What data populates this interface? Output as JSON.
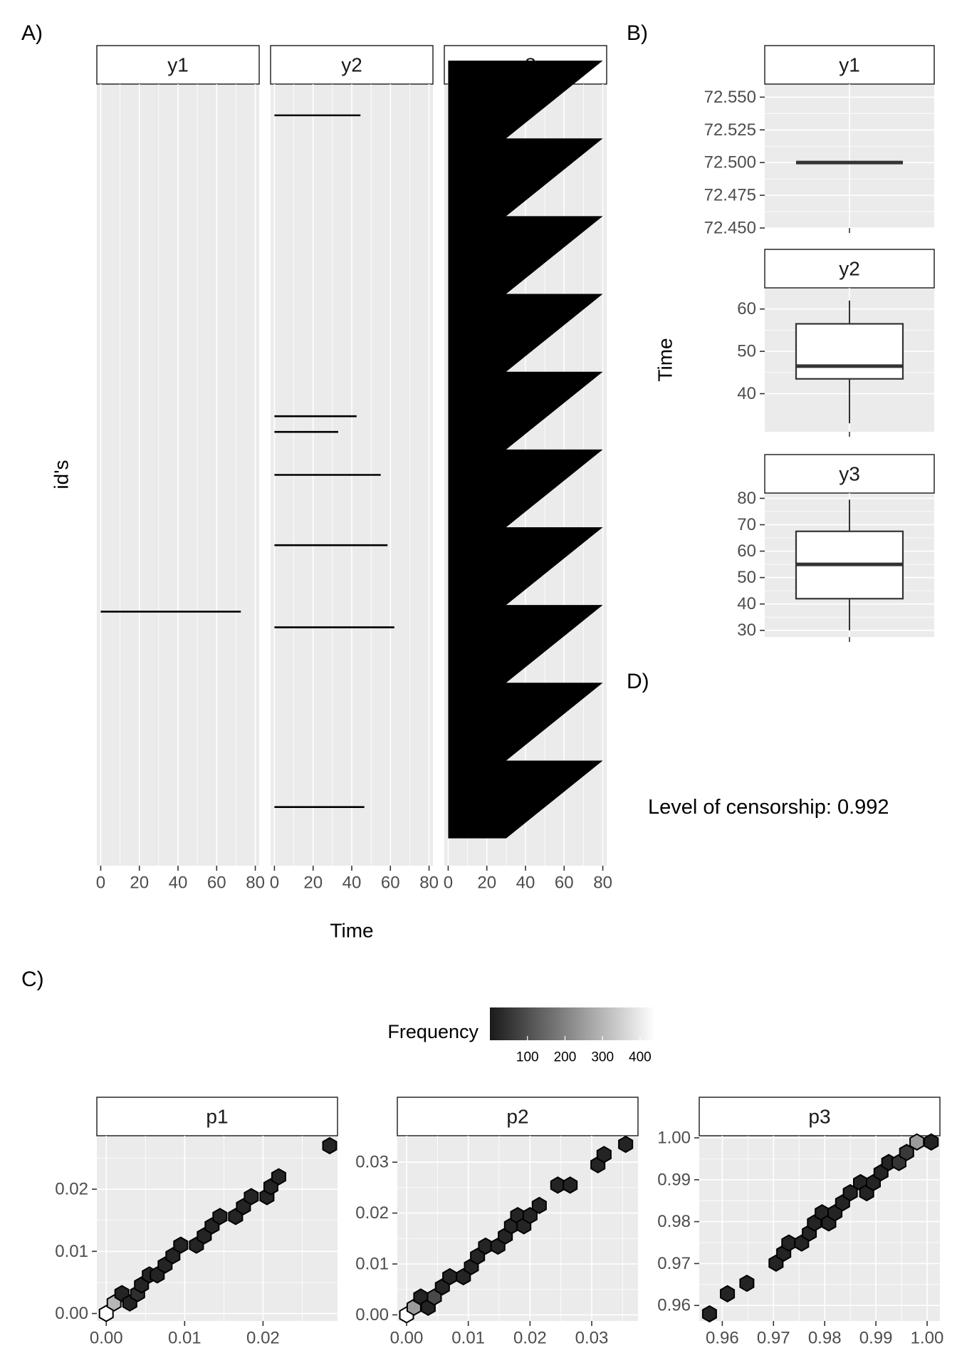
{
  "tags": {
    "a": "A)",
    "b": "B)",
    "c": "C)",
    "d": "D)"
  },
  "censorship_note": "Level of censorship: 0.992",
  "colors": {
    "panel": "#ebebeb",
    "hex_low": "#1a1a1a",
    "hex_high": "#ffffff"
  },
  "chart_data": [
    {
      "type": "line",
      "facets": [
        "y1",
        "y2",
        "y3"
      ],
      "xlabel": "Time",
      "ylabel": "id's",
      "xlim": [
        -2,
        82
      ],
      "xticks": [
        0,
        20,
        40,
        60,
        80
      ],
      "xtick_labels": [
        "0",
        "20",
        "40",
        "60",
        "80"
      ],
      "ylim": [
        0,
        1
      ],
      "grid": true,
      "segments": {
        "y1": [
          {
            "id": 0.325,
            "start": 0,
            "end": 72.5
          }
        ],
        "y2": [
          {
            "id": 0.96,
            "start": 0,
            "end": 44.5
          },
          {
            "id": 0.575,
            "start": 0,
            "end": 42.5
          },
          {
            "id": 0.555,
            "start": 0,
            "end": 33.0
          },
          {
            "id": 0.5,
            "start": 0,
            "end": 55.0
          },
          {
            "id": 0.41,
            "start": 0,
            "end": 58.5
          },
          {
            "id": 0.305,
            "start": 0,
            "end": 62.0
          },
          {
            "id": 0.075,
            "start": 0,
            "end": 46.5
          }
        ],
        "y3": {
          "id_top": 1.03,
          "id_bottom": 0.035,
          "start": 0,
          "end_min": 30,
          "end_max": 80,
          "cycles": 10
        }
      }
    },
    {
      "type": "box",
      "facets": [
        "y1",
        "y2",
        "y3"
      ],
      "ylabel": "Time",
      "boxes": [
        {
          "name": "y1",
          "ylim": [
            72.45,
            72.56
          ],
          "yticks": [
            72.45,
            72.475,
            72.5,
            72.525,
            72.55
          ],
          "ytick_labels": [
            "72.450",
            "72.475",
            "72.500",
            "72.525",
            "72.550"
          ],
          "min": 72.5,
          "q1": 72.5,
          "median": 72.5,
          "q3": 72.5,
          "max": 72.5
        },
        {
          "name": "y2",
          "ylim": [
            31,
            65
          ],
          "yticks": [
            40,
            50,
            60
          ],
          "ytick_labels": [
            "40",
            "50",
            "60"
          ],
          "min": 33,
          "q1": 43.5,
          "median": 46.5,
          "q3": 56.5,
          "max": 62
        },
        {
          "name": "y3",
          "ylim": [
            27.5,
            82
          ],
          "yticks": [
            30,
            40,
            50,
            60,
            70,
            80
          ],
          "ytick_labels": [
            "30",
            "40",
            "50",
            "60",
            "70",
            "80"
          ],
          "min": 30,
          "q1": 42,
          "median": 55,
          "q3": 67.5,
          "max": 79.5
        }
      ]
    },
    {
      "type": "hexbin",
      "legend": {
        "title": "Frequency",
        "ticks": [
          100,
          200,
          300,
          400
        ],
        "tick_labels": [
          "100",
          "200",
          "300",
          "400"
        ],
        "range": [
          0,
          440
        ]
      },
      "panels": [
        {
          "name": "p1",
          "xlim": [
            -0.0012,
            0.0295
          ],
          "ylim": [
            -0.0012,
            0.0286
          ],
          "xticks": [
            0,
            0.01,
            0.02
          ],
          "xtick_labels": [
            "0.00",
            "0.01",
            "0.02"
          ],
          "yticks": [
            0,
            0.01,
            0.02
          ],
          "ytick_labels": [
            "0.00",
            "0.01",
            "0.02"
          ],
          "hexes": [
            [
              0,
              0,
              440
            ],
            [
              0.001,
              0.0017,
              300
            ],
            [
              0.002,
              0.0032,
              20
            ],
            [
              0.003,
              0.0017,
              20
            ],
            [
              0.004,
              0.0032,
              40
            ],
            [
              0.0045,
              0.0046,
              20
            ],
            [
              0.0055,
              0.0062,
              20
            ],
            [
              0.0065,
              0.0062,
              20
            ],
            [
              0.0075,
              0.0078,
              20
            ],
            [
              0.0085,
              0.0093,
              20
            ],
            [
              0.0095,
              0.011,
              20
            ],
            [
              0.0115,
              0.011,
              20
            ],
            [
              0.0125,
              0.0125,
              20
            ],
            [
              0.0135,
              0.0141,
              20
            ],
            [
              0.0145,
              0.0156,
              20
            ],
            [
              0.0165,
              0.0156,
              20
            ],
            [
              0.0175,
              0.0172,
              20
            ],
            [
              0.0185,
              0.0188,
              20
            ],
            [
              0.0205,
              0.0188,
              20
            ],
            [
              0.021,
              0.0204,
              20
            ],
            [
              0.022,
              0.022,
              20
            ],
            [
              0.0285,
              0.027,
              20
            ]
          ]
        },
        {
          "name": "p2",
          "xlim": [
            -0.0015,
            0.0375
          ],
          "ylim": [
            -0.0012,
            0.0352
          ],
          "xticks": [
            0,
            0.01,
            0.02,
            0.03
          ],
          "xtick_labels": [
            "0.00",
            "0.01",
            "0.02",
            "0.03"
          ],
          "yticks": [
            0,
            0.01,
            0.02,
            0.03
          ],
          "ytick_labels": [
            "0.00",
            "0.01",
            "0.02",
            "0.03"
          ],
          "hexes": [
            [
              0,
              0,
              440
            ],
            [
              0.0012,
              0.0015,
              250
            ],
            [
              0.0023,
              0.0035,
              20
            ],
            [
              0.0035,
              0.0015,
              20
            ],
            [
              0.0045,
              0.0035,
              90
            ],
            [
              0.0058,
              0.0055,
              20
            ],
            [
              0.007,
              0.0075,
              20
            ],
            [
              0.0092,
              0.0075,
              20
            ],
            [
              0.0105,
              0.0095,
              20
            ],
            [
              0.0115,
              0.0115,
              20
            ],
            [
              0.0128,
              0.0135,
              20
            ],
            [
              0.0148,
              0.0135,
              20
            ],
            [
              0.016,
              0.0155,
              20
            ],
            [
              0.017,
              0.0175,
              20
            ],
            [
              0.018,
              0.0195,
              20
            ],
            [
              0.019,
              0.0175,
              20
            ],
            [
              0.02,
              0.0195,
              20
            ],
            [
              0.0215,
              0.0215,
              20
            ],
            [
              0.0245,
              0.0255,
              20
            ],
            [
              0.0265,
              0.0255,
              20
            ],
            [
              0.031,
              0.0295,
              20
            ],
            [
              0.032,
              0.0315,
              20
            ],
            [
              0.0355,
              0.0335,
              20
            ]
          ]
        },
        {
          "name": "p3",
          "xlim": [
            0.9555,
            1.0025
          ],
          "ylim": [
            0.9563,
            1.0005
          ],
          "xticks": [
            0.96,
            0.97,
            0.98,
            0.99,
            1.0
          ],
          "xtick_labels": [
            "0.96",
            "0.97",
            "0.98",
            "0.99",
            "1.00"
          ],
          "yticks": [
            0.96,
            0.97,
            0.98,
            0.99,
            1.0
          ],
          "ytick_labels": [
            "0.96",
            "0.97",
            "0.98",
            "0.99",
            "1.00"
          ],
          "hexes": [
            [
              0.9575,
              0.958,
              20
            ],
            [
              0.961,
              0.9628,
              20
            ],
            [
              0.9648,
              0.9653,
              20
            ],
            [
              0.9705,
              0.9701,
              20
            ],
            [
              0.972,
              0.9725,
              20
            ],
            [
              0.973,
              0.9749,
              20
            ],
            [
              0.9755,
              0.9749,
              20
            ],
            [
              0.977,
              0.9773,
              20
            ],
            [
              0.978,
              0.9797,
              20
            ],
            [
              0.9795,
              0.9821,
              20
            ],
            [
              0.9808,
              0.9797,
              20
            ],
            [
              0.982,
              0.9821,
              20
            ],
            [
              0.9835,
              0.9845,
              20
            ],
            [
              0.985,
              0.9869,
              20
            ],
            [
              0.987,
              0.9893,
              20
            ],
            [
              0.9882,
              0.9869,
              20
            ],
            [
              0.9895,
              0.9893,
              20
            ],
            [
              0.991,
              0.9917,
              20
            ],
            [
              0.9925,
              0.9941,
              20
            ],
            [
              0.9945,
              0.9941,
              50
            ],
            [
              0.996,
              0.9965,
              60
            ],
            [
              0.998,
              0.999,
              250
            ],
            [
              1.0008,
              0.999,
              20
            ]
          ]
        }
      ]
    }
  ]
}
